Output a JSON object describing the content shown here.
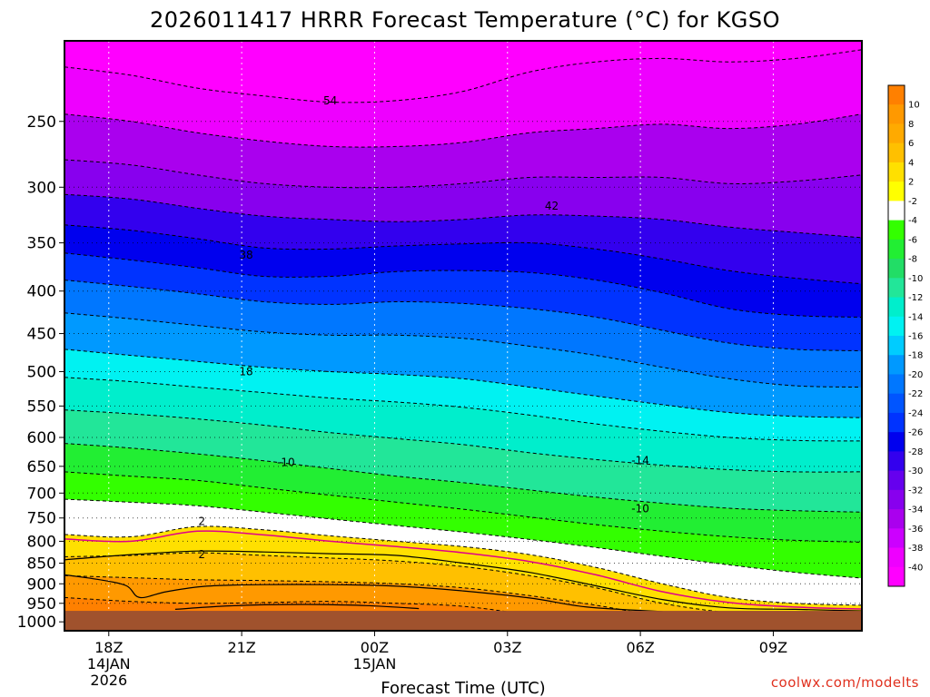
{
  "chart_data": {
    "type": "heatmap",
    "title": "2026011417 HRRR Forecast Temperature (°C) for KGSO",
    "xlabel": "Forecast Time (UTC)",
    "ylabel": "",
    "x_ticks": [
      {
        "label": "18Z",
        "date": "14JAN",
        "year": "2026"
      },
      {
        "label": "21Z",
        "date": "",
        "year": ""
      },
      {
        "label": "00Z",
        "date": "15JAN",
        "year": ""
      },
      {
        "label": "03Z",
        "date": "",
        "year": ""
      },
      {
        "label": "06Z",
        "date": "",
        "year": ""
      },
      {
        "label": "09Z",
        "date": "",
        "year": ""
      }
    ],
    "x_hours": [
      18,
      21,
      24,
      27,
      30,
      33
    ],
    "xlim_hours": [
      17,
      35
    ],
    "y_ticks": [
      250,
      300,
      350,
      400,
      450,
      500,
      550,
      600,
      650,
      700,
      750,
      800,
      850,
      900,
      950,
      1000
    ],
    "y_scale": "log",
    "ylim": [
      1025,
      200
    ],
    "ground_level_hPa": 970,
    "grid": true,
    "colorbar": {
      "labels": [
        "10",
        "8",
        "6",
        "4",
        "2",
        "-2",
        "-4",
        "-6",
        "-8",
        "-10",
        "-12",
        "-14",
        "-16",
        "-18",
        "-20",
        "-22",
        "-24",
        "-26",
        "-28",
        "-30",
        "-32",
        "-34",
        "-36",
        "-38",
        "-40"
      ],
      "colors": [
        "#ff8000",
        "#ff9900",
        "#ffaa00",
        "#ffc000",
        "#ffe000",
        "#ffff00",
        "#ffffff",
        "#33ff00",
        "#22ee33",
        "#22dd66",
        "#22e699",
        "#00eecc",
        "#00f2f2",
        "#00ccff",
        "#0099ff",
        "#0077ff",
        "#0055ff",
        "#0033ff",
        "#0000ee",
        "#3300ee",
        "#6600ee",
        "#8800ee",
        "#aa00ee",
        "#cc00ff",
        "#ee00ff",
        "#ff00ff"
      ]
    },
    "contour_labels": [
      {
        "text": "54",
        "hour": 23.0,
        "p": 236
      },
      {
        "text": "42",
        "hour": 28.0,
        "p": 316
      },
      {
        "text": "38",
        "hour": 21.1,
        "p": 362
      },
      {
        "text": "18",
        "hour": 21.1,
        "p": 500
      },
      {
        "text": "-10",
        "hour": 22.0,
        "p": 643
      },
      {
        "text": "-14",
        "hour": 30.0,
        "p": 640
      },
      {
        "text": "-10",
        "hour": 30.0,
        "p": 731
      },
      {
        "text": "2",
        "hour": 20.1,
        "p": 757
      },
      {
        "text": "2",
        "hour": 20.1,
        "p": 830
      }
    ],
    "series": [
      {
        "label": "-54",
        "values": [
          [
            17,
            215
          ],
          [
            18.5,
            220
          ],
          [
            20,
            228
          ],
          [
            21.5,
            233
          ],
          [
            23,
            237
          ],
          [
            24.5,
            236
          ],
          [
            26,
            230
          ],
          [
            27.5,
            218
          ],
          [
            29,
            212
          ],
          [
            30.5,
            210
          ],
          [
            32,
            212
          ],
          [
            33.5,
            210
          ],
          [
            35,
            205
          ]
        ]
      },
      {
        "label": "-50",
        "values": [
          [
            17,
            245
          ],
          [
            18.5,
            250
          ],
          [
            20,
            258
          ],
          [
            21.5,
            264
          ],
          [
            23,
            268
          ],
          [
            24.5,
            268
          ],
          [
            26,
            265
          ],
          [
            27.5,
            258
          ],
          [
            29,
            255
          ],
          [
            30.5,
            252
          ],
          [
            32,
            255
          ],
          [
            33.5,
            252
          ],
          [
            35,
            245
          ]
        ]
      },
      {
        "label": "-46",
        "values": [
          [
            17,
            278
          ],
          [
            18.5,
            282
          ],
          [
            20,
            290
          ],
          [
            21.5,
            297
          ],
          [
            23,
            300
          ],
          [
            24.5,
            300
          ],
          [
            26,
            297
          ],
          [
            27.5,
            292
          ],
          [
            29,
            292
          ],
          [
            30.5,
            292
          ],
          [
            32,
            297
          ],
          [
            33.5,
            295
          ],
          [
            35,
            290
          ]
        ]
      },
      {
        "label": "-42",
        "values": [
          [
            17,
            306
          ],
          [
            18.5,
            310
          ],
          [
            20,
            318
          ],
          [
            21.5,
            325
          ],
          [
            23,
            328
          ],
          [
            24.5,
            330
          ],
          [
            26,
            328
          ],
          [
            27.5,
            324
          ],
          [
            29,
            325
          ],
          [
            30.5,
            328
          ],
          [
            32,
            335
          ],
          [
            33.5,
            340
          ],
          [
            35,
            345
          ]
        ]
      },
      {
        "label": "-38",
        "values": [
          [
            17,
            333
          ],
          [
            18.5,
            338
          ],
          [
            20,
            346
          ],
          [
            21.5,
            355
          ],
          [
            23,
            356
          ],
          [
            24.5,
            353
          ],
          [
            26,
            351
          ],
          [
            27.5,
            350
          ],
          [
            29,
            356
          ],
          [
            30.5,
            366
          ],
          [
            32,
            378
          ],
          [
            33.5,
            386
          ],
          [
            35,
            392
          ]
        ]
      },
      {
        "label": "-34",
        "values": [
          [
            17,
            360
          ],
          [
            18.5,
            367
          ],
          [
            20,
            375
          ],
          [
            21.5,
            384
          ],
          [
            23,
            384
          ],
          [
            24.5,
            379
          ],
          [
            26,
            378
          ],
          [
            27.5,
            380
          ],
          [
            29,
            388
          ],
          [
            30.5,
            402
          ],
          [
            32,
            420
          ],
          [
            33.5,
            428
          ],
          [
            35,
            430
          ]
        ]
      },
      {
        "label": "-30",
        "values": [
          [
            17,
            388
          ],
          [
            18.5,
            395
          ],
          [
            20,
            403
          ],
          [
            21.5,
            412
          ],
          [
            23,
            415
          ],
          [
            24.5,
            412
          ],
          [
            26,
            414
          ],
          [
            27.5,
            420
          ],
          [
            29,
            430
          ],
          [
            30.5,
            446
          ],
          [
            32,
            462
          ],
          [
            33.5,
            470
          ],
          [
            35,
            472
          ]
        ]
      },
      {
        "label": "-26",
        "values": [
          [
            17,
            425
          ],
          [
            18.5,
            432
          ],
          [
            20,
            440
          ],
          [
            21.5,
            448
          ],
          [
            23,
            452
          ],
          [
            24.5,
            452
          ],
          [
            26,
            456
          ],
          [
            27.5,
            466
          ],
          [
            29,
            478
          ],
          [
            30.5,
            494
          ],
          [
            32,
            510
          ],
          [
            33.5,
            520
          ],
          [
            35,
            522
          ]
        ]
      },
      {
        "label": "-22",
        "values": [
          [
            17,
            470
          ],
          [
            18.5,
            478
          ],
          [
            20,
            486
          ],
          [
            21.5,
            494
          ],
          [
            23,
            500
          ],
          [
            24.5,
            504
          ],
          [
            26,
            510
          ],
          [
            27.5,
            522
          ],
          [
            29,
            535
          ],
          [
            30.5,
            548
          ],
          [
            32,
            560
          ],
          [
            33.5,
            566
          ],
          [
            35,
            568
          ]
        ]
      },
      {
        "label": "-18",
        "values": [
          [
            17,
            508
          ],
          [
            18.5,
            514
          ],
          [
            20,
            522
          ],
          [
            21.5,
            530
          ],
          [
            23,
            538
          ],
          [
            24.5,
            544
          ],
          [
            26,
            552
          ],
          [
            27.5,
            564
          ],
          [
            29,
            578
          ],
          [
            30.5,
            590
          ],
          [
            32,
            600
          ],
          [
            33.5,
            605
          ],
          [
            35,
            606
          ]
        ]
      },
      {
        "label": "-14",
        "values": [
          [
            17,
            556
          ],
          [
            18.5,
            562
          ],
          [
            20,
            570
          ],
          [
            21.5,
            580
          ],
          [
            23,
            592
          ],
          [
            24.5,
            602
          ],
          [
            26,
            612
          ],
          [
            27.5,
            626
          ],
          [
            29,
            638
          ],
          [
            30.5,
            648
          ],
          [
            32,
            656
          ],
          [
            33.5,
            660
          ],
          [
            35,
            660
          ]
        ]
      },
      {
        "label": "-10",
        "values": [
          [
            17,
            610
          ],
          [
            18.5,
            618
          ],
          [
            20,
            628
          ],
          [
            21.5,
            640
          ],
          [
            23,
            654
          ],
          [
            24.5,
            668
          ],
          [
            26,
            680
          ],
          [
            27.5,
            694
          ],
          [
            29,
            708
          ],
          [
            30.5,
            720
          ],
          [
            32,
            730
          ],
          [
            33.5,
            735
          ],
          [
            35,
            738
          ]
        ]
      },
      {
        "label": "-6",
        "values": [
          [
            17,
            660
          ],
          [
            18.5,
            668
          ],
          [
            20,
            676
          ],
          [
            21.5,
            690
          ],
          [
            23,
            704
          ],
          [
            24.5,
            718
          ],
          [
            26,
            732
          ],
          [
            27.5,
            748
          ],
          [
            29,
            764
          ],
          [
            30.5,
            778
          ],
          [
            32,
            790
          ],
          [
            33.5,
            798
          ],
          [
            35,
            802
          ]
        ]
      },
      {
        "label": "-2",
        "values": [
          [
            17,
            712
          ],
          [
            18.5,
            718
          ],
          [
            20,
            725
          ],
          [
            21.5,
            738
          ],
          [
            23,
            752
          ],
          [
            24.5,
            766
          ],
          [
            26,
            780
          ],
          [
            27.5,
            796
          ],
          [
            29,
            814
          ],
          [
            30.5,
            834
          ],
          [
            32,
            854
          ],
          [
            33.5,
            872
          ],
          [
            35,
            886
          ]
        ]
      },
      {
        "label": "2",
        "values": [
          [
            17,
            785
          ],
          [
            18.5,
            790
          ],
          [
            20,
            768
          ],
          [
            21.5,
            775
          ],
          [
            23,
            788
          ],
          [
            24.5,
            800
          ],
          [
            26,
            812
          ],
          [
            27.5,
            830
          ],
          [
            29,
            860
          ],
          [
            30.5,
            900
          ],
          [
            32,
            935
          ],
          [
            33.5,
            950
          ],
          [
            35,
            955
          ]
        ]
      },
      {
        "label": "6",
        "values": [
          [
            17,
            835
          ],
          [
            18.5,
            832
          ],
          [
            20,
            826
          ],
          [
            21.5,
            832
          ],
          [
            23,
            838
          ],
          [
            24.5,
            845
          ],
          [
            26,
            858
          ],
          [
            27.5,
            880
          ],
          [
            29,
            910
          ],
          [
            30.5,
            950
          ],
          [
            32,
            975
          ],
          [
            33.5,
            985
          ],
          [
            35,
            990
          ]
        ]
      },
      {
        "label": "10",
        "values": [
          [
            17,
            880
          ],
          [
            18.5,
            885
          ],
          [
            20,
            890
          ],
          [
            21.5,
            892
          ],
          [
            23,
            895
          ],
          [
            24.5,
            900
          ],
          [
            26,
            910
          ],
          [
            27.5,
            930
          ],
          [
            29,
            955
          ],
          [
            30.5,
            985
          ],
          [
            32,
            1000
          ],
          [
            33.5,
            1010
          ],
          [
            35,
            1015
          ]
        ]
      },
      {
        "label": "12",
        "values": [
          [
            17,
            935
          ],
          [
            18.5,
            945
          ],
          [
            20,
            950
          ],
          [
            21.5,
            948
          ],
          [
            23,
            945
          ],
          [
            24.5,
            950
          ],
          [
            26,
            958
          ],
          [
            27.5,
            980
          ],
          [
            29,
            1000
          ],
          [
            30.5,
            1020
          ],
          [
            32,
            1030
          ],
          [
            33.5,
            1035
          ],
          [
            35,
            1040
          ]
        ]
      }
    ],
    "zero_line": [
      [
        17,
        795
      ],
      [
        18.5,
        800
      ],
      [
        20,
        778
      ],
      [
        21.5,
        786
      ],
      [
        23,
        800
      ],
      [
        24.5,
        812
      ],
      [
        26,
        826
      ],
      [
        27.5,
        846
      ],
      [
        29,
        878
      ],
      [
        30.5,
        920
      ],
      [
        32,
        948
      ],
      [
        33.5,
        960
      ],
      [
        35,
        965
      ]
    ],
    "solid_lines": [
      [
        [
          17,
          878
        ],
        [
          17.8,
          890
        ],
        [
          18.4,
          905
        ],
        [
          18.7,
          935
        ],
        [
          19.3,
          920
        ],
        [
          20.2,
          906
        ],
        [
          21.5,
          902
        ],
        [
          23,
          902
        ],
        [
          24.5,
          906
        ],
        [
          26,
          918
        ],
        [
          27.5,
          936
        ],
        [
          28.8,
          960
        ],
        [
          30.5,
          972
        ]
      ],
      [
        [
          19.5,
          966
        ],
        [
          20.5,
          958
        ],
        [
          21.5,
          954
        ],
        [
          22.5,
          953
        ],
        [
          23.8,
          956
        ],
        [
          25,
          964
        ]
      ],
      [
        [
          17,
          842
        ],
        [
          18.5,
          830
        ],
        [
          20,
          822
        ],
        [
          21.5,
          824
        ],
        [
          23,
          828
        ],
        [
          24.5,
          832
        ],
        [
          26,
          850
        ],
        [
          27.5,
          872
        ],
        [
          29,
          905
        ],
        [
          30.5,
          940
        ],
        [
          32,
          962
        ],
        [
          33.5,
          966
        ],
        [
          35,
          970
        ]
      ]
    ]
  }
}
